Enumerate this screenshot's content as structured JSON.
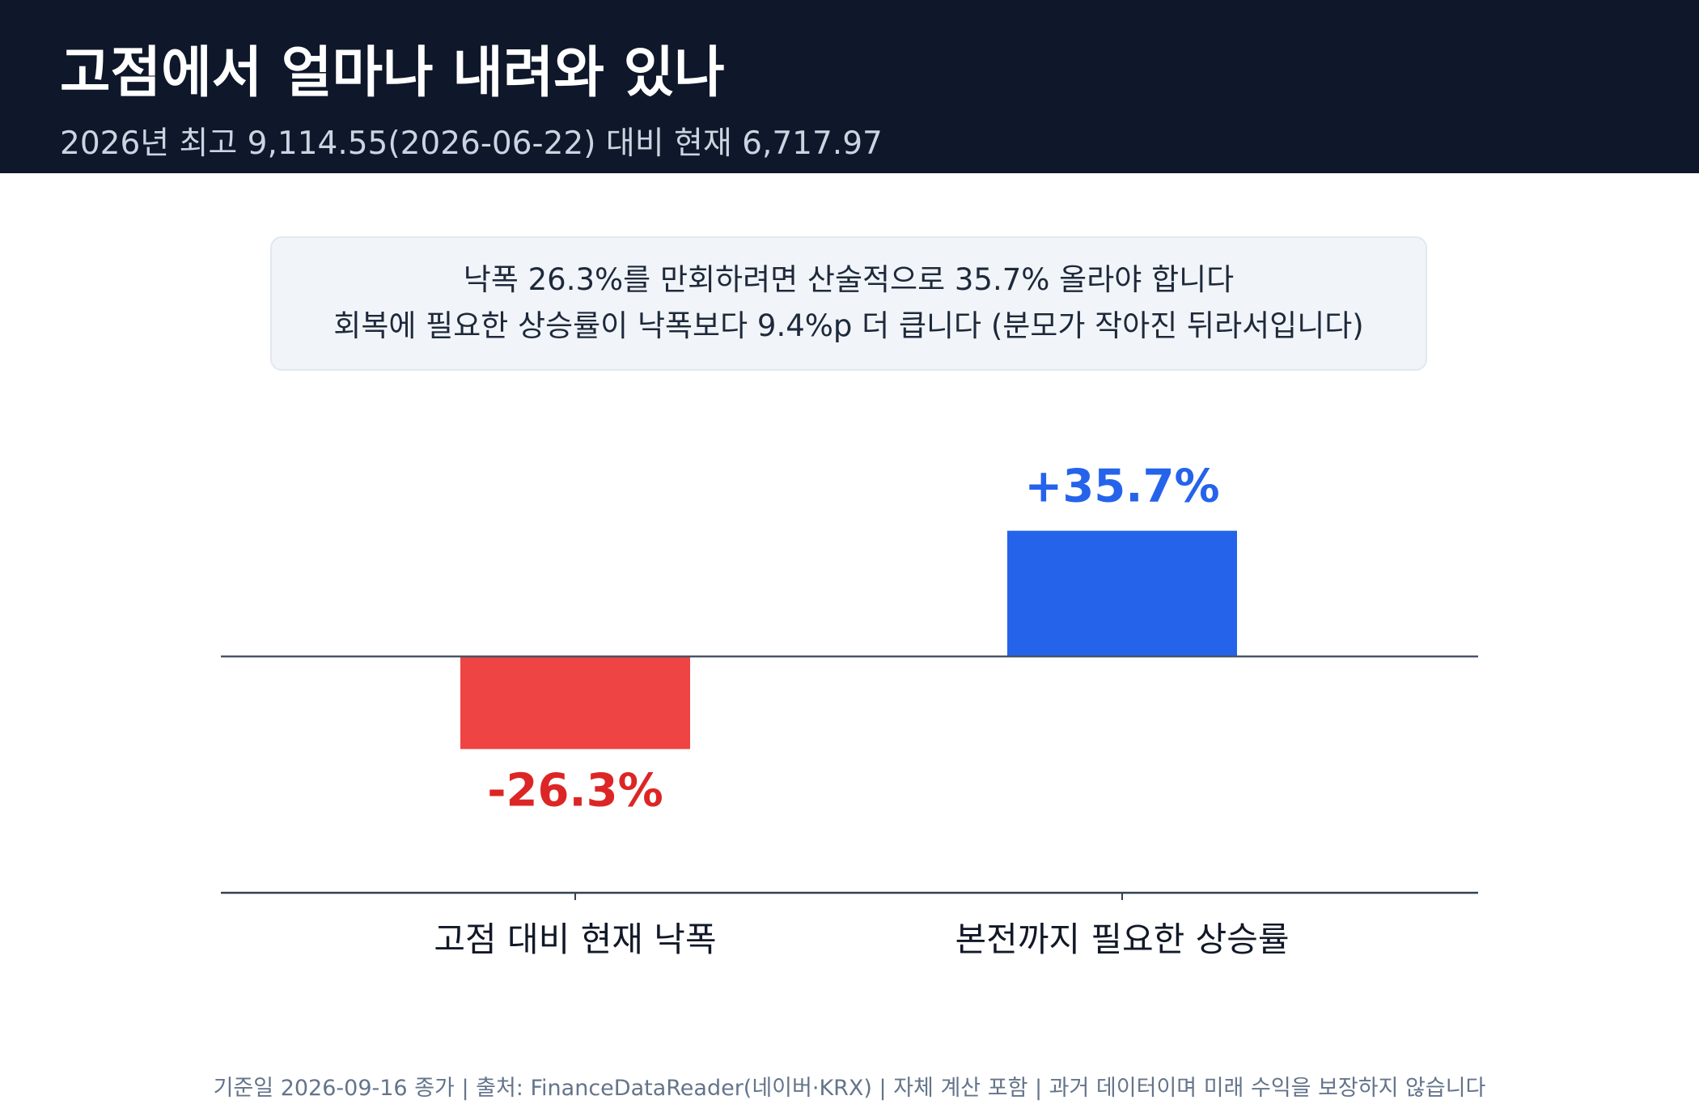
{
  "header": {
    "title": "고점에서 얼마나 내려와 있나",
    "subtitle": "2026년 최고 9,114.55(2026-06-22) 대비 현재 6,717.97"
  },
  "note": {
    "line1": "낙폭 26.3%를 만회하려면 산술적으로 35.7% 올라야 합니다",
    "line2": "회복에 필요한 상승률이 낙폭보다 9.4%p 더 큽니다 (분모가 작아진 뒤라서입니다)"
  },
  "chart_data": {
    "type": "bar",
    "categories": [
      "고점 대비 현재 낙폭",
      "본전까지 필요한 상승률"
    ],
    "values": [
      -26.3,
      35.7
    ],
    "value_labels": [
      "-26.3%",
      "+35.7%"
    ],
    "colors": [
      "#ef4444",
      "#2563eb"
    ],
    "label_colors": [
      "#dc2626",
      "#2563eb"
    ],
    "ylim": [
      -56,
      65
    ],
    "title": "",
    "xlabel": "",
    "ylabel": "",
    "grid": false
  },
  "footer": {
    "text": "기준일 2026-09-16 종가 | 출처: FinanceDataReader(네이버·KRX) | 자체 계산 포함 | 과거 데이터이며 미래 수익을 보장하지 않습니다"
  }
}
